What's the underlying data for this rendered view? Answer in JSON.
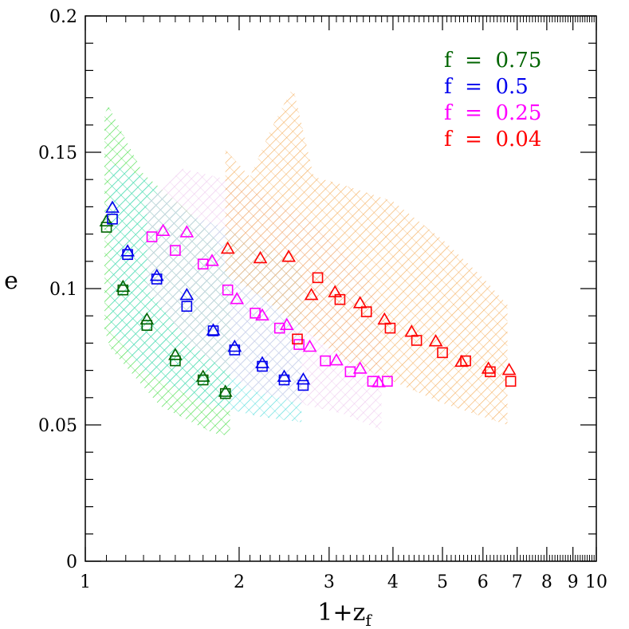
{
  "chart_data": {
    "type": "scatter",
    "xlabel": "1+z",
    "xlabel_sub": "f",
    "ylabel": "e",
    "xscale": "log",
    "xlim": [
      1,
      10
    ],
    "ylim": [
      0,
      0.2
    ],
    "x_ticks": [
      1,
      2,
      3,
      4,
      5,
      6,
      7,
      8,
      9,
      10
    ],
    "y_ticks": [
      0,
      0.05,
      0.1,
      0.15,
      0.2
    ],
    "y_tick_labels": [
      "0",
      "0.05",
      "0.1",
      "0.15",
      "0.2"
    ],
    "legend_position": "top-right",
    "legend": [
      {
        "label": "f  =  0.75",
        "color": "#006400"
      },
      {
        "label": "f  =  0.5",
        "color": "#0000ee"
      },
      {
        "label": "f  =  0.25",
        "color": "#ff00ff"
      },
      {
        "label": "f  =  0.04",
        "color": "#ff0000"
      }
    ],
    "series": [
      {
        "color": "#006400",
        "band_color": "#44dd44",
        "band": [
          [
            1.09,
            0.164
          ],
          [
            1.11,
            0.167
          ],
          [
            1.3,
            0.142
          ],
          [
            1.6,
            0.128
          ],
          [
            1.8,
            0.118
          ],
          [
            1.92,
            0.103
          ],
          [
            1.92,
            0.046
          ],
          [
            1.78,
            0.047
          ],
          [
            1.4,
            0.057
          ],
          [
            1.12,
            0.078
          ],
          [
            1.09,
            0.085
          ]
        ],
        "squares": [
          [
            1.1,
            0.1225
          ],
          [
            1.185,
            0.0995
          ],
          [
            1.32,
            0.0865
          ],
          [
            1.5,
            0.0735
          ],
          [
            1.7,
            0.0665
          ],
          [
            1.88,
            0.0615
          ]
        ],
        "triangles": [
          [
            1.1,
            0.1245
          ],
          [
            1.185,
            0.1005
          ],
          [
            1.32,
            0.0885
          ],
          [
            1.5,
            0.0755
          ],
          [
            1.7,
            0.0675
          ],
          [
            1.88,
            0.062
          ]
        ]
      },
      {
        "color": "#0000ee",
        "band_color": "#55dddd",
        "band": [
          [
            1.12,
            0.146
          ],
          [
            1.3,
            0.141
          ],
          [
            1.6,
            0.127
          ],
          [
            1.9,
            0.122
          ],
          [
            2.25,
            0.115
          ],
          [
            2.65,
            0.108
          ],
          [
            2.65,
            0.051
          ],
          [
            2.2,
            0.053
          ],
          [
            1.7,
            0.058
          ],
          [
            1.3,
            0.07
          ],
          [
            1.12,
            0.085
          ]
        ],
        "squares": [
          [
            1.13,
            0.1255
          ],
          [
            1.21,
            0.1125
          ],
          [
            1.38,
            0.1035
          ],
          [
            1.58,
            0.0935
          ],
          [
            1.78,
            0.0845
          ],
          [
            1.96,
            0.0775
          ],
          [
            2.22,
            0.0715
          ],
          [
            2.45,
            0.0665
          ],
          [
            2.67,
            0.0645
          ]
        ],
        "triangles": [
          [
            1.13,
            0.1295
          ],
          [
            1.21,
            0.1135
          ],
          [
            1.38,
            0.1045
          ],
          [
            1.58,
            0.0975
          ],
          [
            1.78,
            0.0845
          ],
          [
            1.96,
            0.0785
          ],
          [
            2.22,
            0.0725
          ],
          [
            2.45,
            0.0675
          ],
          [
            2.67,
            0.0665
          ]
        ]
      },
      {
        "color": "#ff00ff",
        "band_color": "#eec8ee",
        "band": [
          [
            1.32,
            0.131
          ],
          [
            1.55,
            0.144
          ],
          [
            1.9,
            0.14
          ],
          [
            2.4,
            0.132
          ],
          [
            2.9,
            0.122
          ],
          [
            3.5,
            0.106
          ],
          [
            3.8,
            0.095
          ],
          [
            3.8,
            0.048
          ],
          [
            3.2,
            0.054
          ],
          [
            2.6,
            0.058
          ],
          [
            2.1,
            0.063
          ],
          [
            1.6,
            0.08
          ],
          [
            1.32,
            0.1
          ]
        ],
        "squares": [
          [
            1.35,
            0.119
          ],
          [
            1.5,
            0.114
          ],
          [
            1.7,
            0.109
          ],
          [
            1.9,
            0.0995
          ],
          [
            2.15,
            0.091
          ],
          [
            2.4,
            0.0855
          ],
          [
            2.62,
            0.0795
          ],
          [
            2.95,
            0.0735
          ],
          [
            3.3,
            0.0695
          ],
          [
            3.65,
            0.066
          ],
          [
            3.9,
            0.066
          ]
        ],
        "triangles": [
          [
            1.42,
            0.121
          ],
          [
            1.58,
            0.1205
          ],
          [
            1.77,
            0.11
          ],
          [
            1.98,
            0.096
          ],
          [
            2.22,
            0.09
          ],
          [
            2.48,
            0.0865
          ],
          [
            2.75,
            0.0785
          ],
          [
            3.1,
            0.0735
          ],
          [
            3.45,
            0.0705
          ],
          [
            3.75,
            0.0655
          ]
        ]
      },
      {
        "color": "#ff0000",
        "band_color": "#f5b060",
        "band": [
          [
            1.88,
            0.138
          ],
          [
            1.88,
            0.151
          ],
          [
            2.1,
            0.141
          ],
          [
            2.3,
            0.158
          ],
          [
            2.55,
            0.174
          ],
          [
            2.8,
            0.141
          ],
          [
            3.2,
            0.138
          ],
          [
            4.0,
            0.132
          ],
          [
            5.0,
            0.118
          ],
          [
            6.0,
            0.104
          ],
          [
            6.7,
            0.094
          ],
          [
            6.7,
            0.05
          ],
          [
            6.0,
            0.053
          ],
          [
            5.0,
            0.058
          ],
          [
            4.0,
            0.066
          ],
          [
            3.2,
            0.074
          ],
          [
            2.6,
            0.087
          ],
          [
            2.1,
            0.1
          ],
          [
            1.88,
            0.105
          ]
        ],
        "squares": [
          [
            2.6,
            0.0815
          ],
          [
            2.85,
            0.104
          ],
          [
            3.15,
            0.096
          ],
          [
            3.55,
            0.0915
          ],
          [
            3.95,
            0.0855
          ],
          [
            4.45,
            0.081
          ],
          [
            5.0,
            0.0765
          ],
          [
            5.55,
            0.0735
          ],
          [
            6.2,
            0.0695
          ],
          [
            6.8,
            0.066
          ]
        ],
        "triangles": [
          [
            1.9,
            0.1145
          ],
          [
            2.2,
            0.111
          ],
          [
            2.5,
            0.1115
          ],
          [
            2.77,
            0.0975
          ],
          [
            3.08,
            0.0985
          ],
          [
            3.45,
            0.0945
          ],
          [
            3.85,
            0.0885
          ],
          [
            4.35,
            0.084
          ],
          [
            4.85,
            0.0805
          ],
          [
            5.45,
            0.073
          ],
          [
            6.15,
            0.0705
          ],
          [
            6.75,
            0.07
          ]
        ]
      }
    ]
  }
}
